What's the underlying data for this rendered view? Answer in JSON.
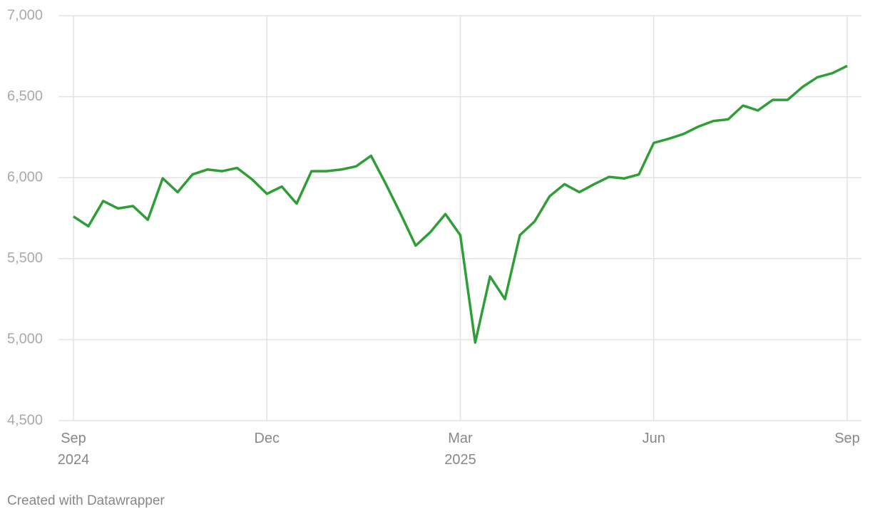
{
  "chart_data": {
    "type": "line",
    "categories": [
      "Sep\n2024",
      null,
      null,
      null,
      null,
      null,
      null,
      null,
      null,
      null,
      null,
      null,
      null,
      "Dec",
      null,
      null,
      null,
      null,
      null,
      null,
      null,
      null,
      null,
      null,
      null,
      null,
      "Mar\n2025",
      null,
      null,
      null,
      null,
      null,
      null,
      null,
      null,
      null,
      null,
      null,
      null,
      "Jun",
      null,
      null,
      null,
      null,
      null,
      null,
      null,
      null,
      null,
      null,
      null,
      null,
      "Sep"
    ],
    "values": [
      5760,
      5700,
      5856,
      5810,
      5825,
      5740,
      5996,
      5910,
      6020,
      6050,
      6040,
      6060,
      5990,
      5900,
      5945,
      5840,
      6040,
      6040,
      6050,
      6070,
      6135,
      5960,
      5775,
      5580,
      5665,
      5775,
      5645,
      4982,
      5390,
      5250,
      5645,
      5730,
      5885,
      5960,
      5910,
      5960,
      6005,
      5995,
      6020,
      6215,
      6240,
      6270,
      6315,
      6350,
      6360,
      6445,
      6415,
      6480,
      6480,
      6560,
      6620,
      6645,
      6690
    ],
    "color": "#2e9e36",
    "ylim": [
      4500,
      7000
    ],
    "yticks": [
      {
        "value": 4500,
        "label": "4,500"
      },
      {
        "value": 5000,
        "label": "5,000"
      },
      {
        "value": 5500,
        "label": "5,500"
      },
      {
        "value": 6000,
        "label": "6,000"
      },
      {
        "value": 6500,
        "label": "6,500"
      },
      {
        "value": 7000,
        "label": "7,000"
      }
    ],
    "grid": true,
    "footer": "Created with Datawrapper"
  }
}
